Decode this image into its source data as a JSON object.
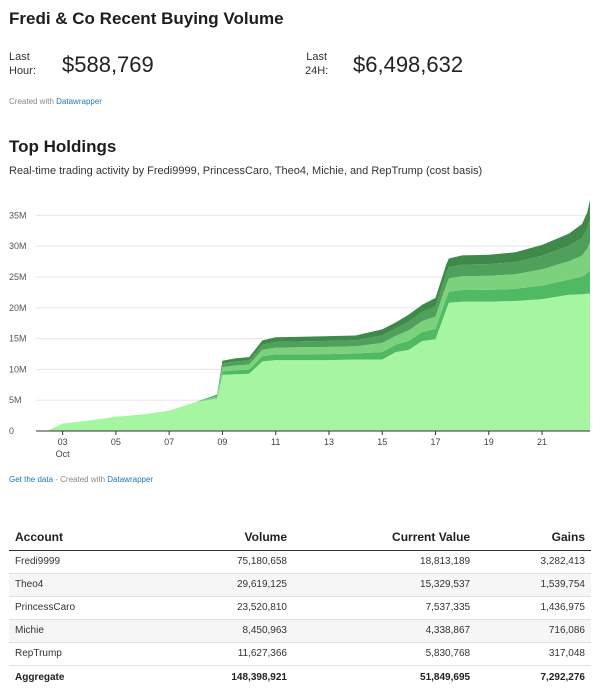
{
  "header": {
    "title": "Fredi & Co Recent Buying Volume",
    "last_hour_label_1": "Last",
    "last_hour_label_2": "Hour:",
    "last_hour_value": "$588,769",
    "last_24h_label_1": "Last",
    "last_24h_label_2": "24H:",
    "last_24h_value": "$6,498,632",
    "credit_prefix": "Created with",
    "credit_link": "Datawrapper"
  },
  "holdings": {
    "title": "Top Holdings",
    "subtitle": "Real-time trading activity by Fredi9999, PrincessCaro, Theo4, Michie, and RepTrump (cost basis)",
    "get_data_link": "Get the data",
    "credit_sep": " - Created with ",
    "credit_link": "Datawrapper"
  },
  "colors": {
    "base": "#a6f5a0",
    "layer2": "#50b964",
    "layer3": "#7cd27c",
    "layer4": "#4fa05a",
    "layer5": "#3f8a4a",
    "axis": "#333333",
    "grid": "#e6e6e6"
  },
  "chart_data": {
    "type": "area",
    "stacked": true,
    "title": "Top Holdings",
    "xlabel": "",
    "ylabel": "",
    "ylim": [
      0,
      37
    ],
    "y_ticks": [
      0,
      5,
      10,
      15,
      20,
      25,
      30,
      35
    ],
    "y_tick_labels": [
      "0",
      "5M",
      "10M",
      "15M",
      "20M",
      "25M",
      "30M",
      "35M"
    ],
    "x_ticks": [
      3,
      5,
      7,
      9,
      11,
      13,
      15,
      17,
      19,
      21
    ],
    "x_tick_labels": [
      "03",
      "05",
      "07",
      "09",
      "11",
      "13",
      "15",
      "17",
      "19",
      "21"
    ],
    "x_sublabel": "Oct",
    "xlim": [
      2,
      22.8
    ],
    "x": [
      2.4,
      3.0,
      4.0,
      5.0,
      6.0,
      7.0,
      8.0,
      8.8,
      9.0,
      9.5,
      10.0,
      10.5,
      11.0,
      12.0,
      13.0,
      14.0,
      15.0,
      15.5,
      16.0,
      16.5,
      17.0,
      17.4,
      17.5,
      18.0,
      19.0,
      20.0,
      21.0,
      22.0,
      22.5,
      22.7,
      22.8
    ],
    "total_cumulative_millions": [
      0.0,
      1.2,
      1.7,
      2.3,
      2.7,
      3.3,
      4.7,
      5.9,
      11.4,
      11.8,
      12.0,
      14.7,
      15.2,
      15.3,
      15.4,
      15.5,
      16.5,
      17.6,
      18.9,
      20.5,
      21.6,
      27.0,
      28.0,
      28.5,
      28.6,
      29.0,
      30.2,
      32.0,
      33.6,
      35.5,
      37.5
    ],
    "base_millions": [
      0.0,
      1.2,
      1.7,
      2.3,
      2.7,
      3.3,
      4.7,
      5.3,
      9.1,
      9.2,
      9.3,
      11.3,
      11.5,
      11.5,
      11.5,
      11.6,
      11.6,
      12.8,
      13.2,
      14.6,
      14.9,
      19.7,
      20.8,
      21.0,
      21.0,
      21.1,
      21.4,
      22.1,
      22.2,
      22.3,
      22.3
    ],
    "series": [
      {
        "name": "Fredi9999",
        "volume": 75180658,
        "current_value": 18813189,
        "gains": 3282413
      },
      {
        "name": "Theo4",
        "volume": 29619125,
        "current_value": 15329537,
        "gains": 1539754
      },
      {
        "name": "PrincessCaro",
        "volume": 23520810,
        "current_value": 7537335,
        "gains": 1436975
      },
      {
        "name": "Michie",
        "volume": 8450963,
        "current_value": 4338867,
        "gains": 716086
      },
      {
        "name": "RepTrump",
        "volume": 11627366,
        "current_value": 5830768,
        "gains": 317048
      }
    ]
  },
  "table": {
    "headers": [
      "Account",
      "Volume",
      "Current Value",
      "Gains"
    ],
    "rows": [
      [
        "Fredi9999",
        "75,180,658",
        "18,813,189",
        "3,282,413"
      ],
      [
        "Theo4",
        "29,619,125",
        "15,329,537",
        "1,539,754"
      ],
      [
        "PrincessCaro",
        "23,520,810",
        "7,537,335",
        "1,436,975"
      ],
      [
        "Michie",
        "8,450,963",
        "4,338,867",
        "716,086"
      ],
      [
        "RepTrump",
        "11,627,366",
        "5,830,768",
        "317,048"
      ]
    ],
    "footer": [
      "Aggregate",
      "148,398,921",
      "51,849,695",
      "7,292,276"
    ]
  }
}
